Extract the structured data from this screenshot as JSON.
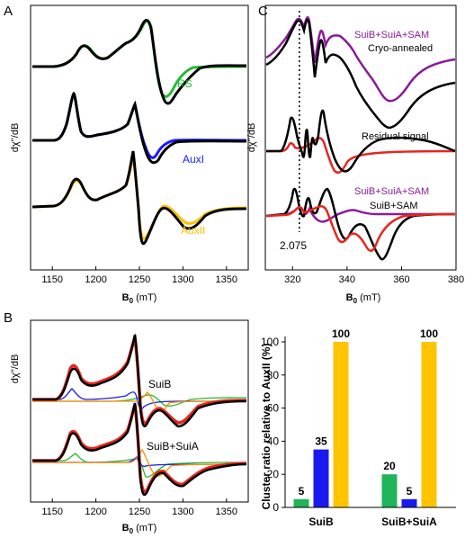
{
  "panels": {
    "A": {
      "letter": "A",
      "xlabel_main": "B",
      "xlabel_sub": "0",
      "xlabel_unit": " (mT)",
      "ylabel": "dχ''/dB",
      "xticks": [
        1150,
        1200,
        1250,
        1300,
        1350
      ],
      "xlim": [
        1125,
        1375
      ],
      "labels": [
        {
          "text": "RS",
          "color": "#22bb33"
        },
        {
          "text": "AuxI",
          "color": "#1a1aff"
        },
        {
          "text": "AuxII",
          "color": "#ffc000"
        }
      ]
    },
    "B": {
      "letter": "B",
      "xlabel_main": "B",
      "xlabel_sub": "0",
      "xlabel_unit": " (mT)",
      "ylabel": "dχ''/dB",
      "xticks": [
        1150,
        1200,
        1250,
        1300,
        1350
      ],
      "xlim": [
        1125,
        1375
      ],
      "labels": [
        {
          "text": "SuiB"
        },
        {
          "text": "SuiB+SuiA"
        }
      ]
    },
    "C": {
      "letter": "C",
      "xlabel_main": "B",
      "xlabel_sub": "0",
      "xlabel_unit": " (mT)",
      "ylabel": "dχ''/dB",
      "xticks": [
        320,
        340,
        360,
        380
      ],
      "xlim": [
        310,
        380
      ],
      "marker_label": "2.075",
      "marker_value": 322.5,
      "labels": [
        {
          "text": "SuiB+SuiA+SAM",
          "color": "#8b1a9a"
        },
        {
          "text": "Cryo-annealed",
          "color": "#000000"
        },
        {
          "text": "Residual signal",
          "color": "#000000"
        },
        {
          "text": "SuiB+SuiA+SAM",
          "color": "#8b1a9a"
        },
        {
          "text": "SuiB+SAM",
          "color": "#000000"
        }
      ]
    }
  },
  "chart_data": {
    "type": "bar",
    "ylabel": "Cluster ratio relative to AuxII (%)",
    "ylim": [
      0,
      100
    ],
    "yticks": [
      0,
      20,
      40,
      60,
      80,
      100
    ],
    "categories": [
      "SuiB",
      "SuiB+SuiA"
    ],
    "colors": {
      "green": "#1fb45a",
      "blue": "#1a1aee",
      "yellow": "#ffc400"
    },
    "series": [
      {
        "color": "green",
        "values": [
          5,
          20
        ]
      },
      {
        "color": "blue",
        "values": [
          35,
          5
        ]
      },
      {
        "color": "yellow",
        "values": [
          100,
          100
        ]
      }
    ],
    "data_labels": [
      [
        "5",
        "35",
        "100"
      ],
      [
        "20",
        "5",
        "100"
      ]
    ]
  }
}
